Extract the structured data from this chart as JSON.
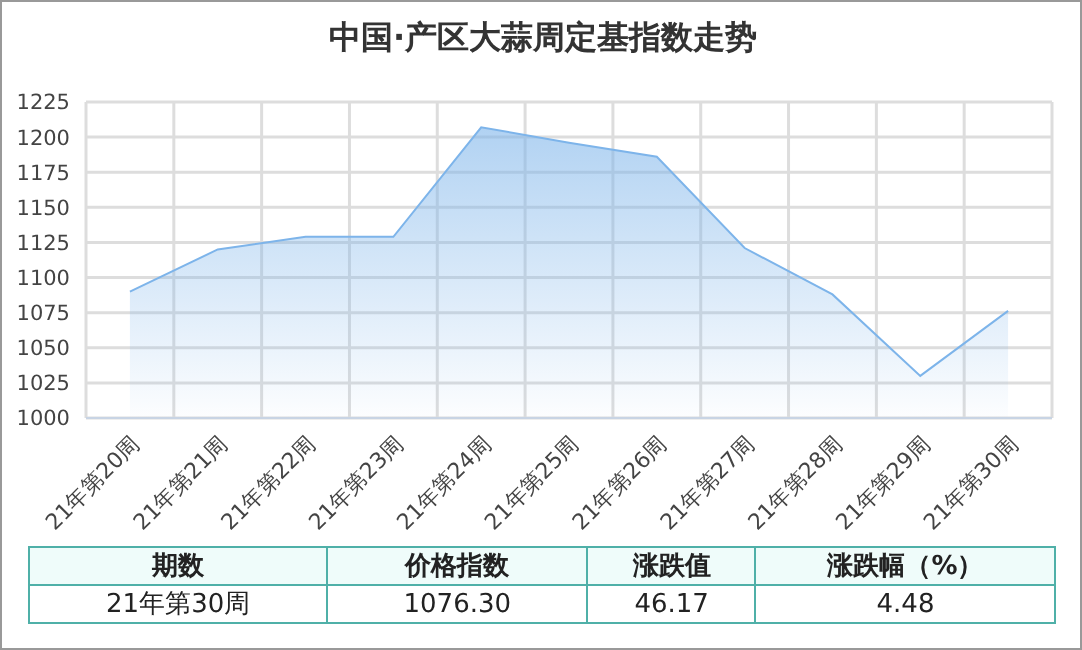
{
  "chart_data": {
    "type": "area",
    "title": "中国·产区大蒜周定基指数走势",
    "categories": [
      "21年第20周",
      "21年第21周",
      "21年第22周",
      "21年第23周",
      "21年第24周",
      "21年第25周",
      "21年第26周",
      "21年第27周",
      "21年第28周",
      "21年第29周",
      "21年第30周"
    ],
    "values": [
      1090,
      1120,
      1129,
      1129,
      1207,
      1196,
      1186,
      1121,
      1088,
      1030,
      1076.3
    ],
    "color": "#7db4ea",
    "ylim": [
      1000,
      1225
    ],
    "yticks": [
      1000,
      1025,
      1050,
      1075,
      1100,
      1125,
      1150,
      1175,
      1200,
      1225
    ],
    "grid": true,
    "annotations": [
      "期数",
      "价格指数",
      "涨跌值",
      "涨跌幅（%）",
      "21年第30周",
      "1076.30",
      "46.17",
      "4.48"
    ]
  }
}
